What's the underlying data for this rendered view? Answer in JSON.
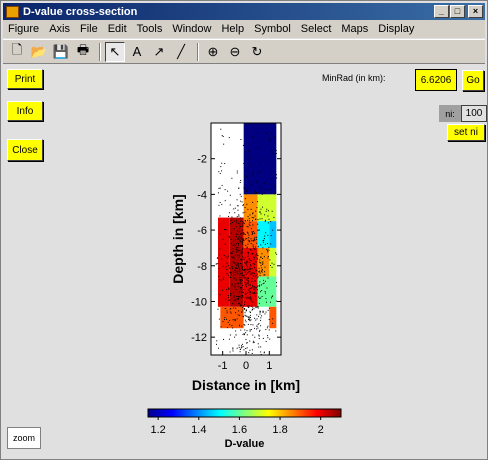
{
  "window": {
    "title": "D-value cross-section",
    "min_label": "_",
    "max_label": "□",
    "close_label": "×"
  },
  "menu": [
    "Figure",
    "Axis",
    "File",
    "Edit",
    "Tools",
    "Window",
    "Help",
    "Symbol",
    "Select",
    "Maps",
    "Display"
  ],
  "toolbar": [
    {
      "name": "new-icon",
      "glyph": "🗋"
    },
    {
      "name": "open-icon",
      "glyph": "📂"
    },
    {
      "name": "save-icon",
      "glyph": "💾"
    },
    {
      "name": "print-icon",
      "glyph": "🖶"
    },
    {
      "name": "select-arrow-icon",
      "glyph": "↖"
    },
    {
      "name": "text-icon",
      "glyph": "A"
    },
    {
      "name": "arrow-icon",
      "glyph": "↗"
    },
    {
      "name": "line-icon",
      "glyph": "╱"
    },
    {
      "name": "zoom-in-icon",
      "glyph": "⊕"
    },
    {
      "name": "zoom-out-icon",
      "glyph": "⊖"
    },
    {
      "name": "rotate-icon",
      "glyph": "↻"
    }
  ],
  "buttons": {
    "print": "Print",
    "info": "Info",
    "close": "Close",
    "go": "Go",
    "set_ni": "set ni",
    "zoom": "zoom"
  },
  "minrad": {
    "label": "MinRad (in km):",
    "value": "6.6206"
  },
  "ni": {
    "label": "ni:",
    "value": "100"
  },
  "chart_data": {
    "type": "heatmap",
    "xlabel": "Distance in [km]",
    "ylabel": "Depth in [km]",
    "xlim": [
      -1.5,
      1.5
    ],
    "ylim": [
      -13,
      0
    ],
    "xticks": [
      "-1",
      "0",
      "1"
    ],
    "yticks": [
      "-2",
      "-4",
      "-6",
      "-8",
      "-10",
      "-12"
    ],
    "colorbar": {
      "label": "D-value",
      "range": [
        1.15,
        2.1
      ],
      "ticks": [
        "1.2",
        "1.4",
        "1.6",
        "1.8",
        "2"
      ]
    },
    "cells_note": "values in D-value units; x in km, depth in km",
    "cells": [
      {
        "x0": -0.1,
        "x1": 1.3,
        "y0": 0,
        "y1": -4,
        "value": 1.15
      },
      {
        "x0": -0.1,
        "x1": 0.5,
        "y0": -4,
        "y1": -5.5,
        "value": 1.85
      },
      {
        "x0": 0.5,
        "x1": 1.3,
        "y0": -4,
        "y1": -5.5,
        "value": 1.7
      },
      {
        "x0": -0.7,
        "x1": -0.1,
        "y0": -5.3,
        "y1": -10.3,
        "value": 2.05
      },
      {
        "x0": -1.2,
        "x1": -0.7,
        "y0": -5.3,
        "y1": -10.3,
        "value": 2.0
      },
      {
        "x0": -0.1,
        "x1": 0.5,
        "y0": -5.5,
        "y1": -7.0,
        "value": 1.9
      },
      {
        "x0": 0.5,
        "x1": 1.0,
        "y0": -5.5,
        "y1": -7.0,
        "value": 1.5
      },
      {
        "x0": 1.0,
        "x1": 1.3,
        "y0": -5.5,
        "y1": -7.0,
        "value": 1.45
      },
      {
        "x0": -0.1,
        "x1": 0.5,
        "y0": -7.0,
        "y1": -10.3,
        "value": 2.0
      },
      {
        "x0": 0.5,
        "x1": 1.0,
        "y0": -7.0,
        "y1": -8.6,
        "value": 1.85
      },
      {
        "x0": 1.0,
        "x1": 1.3,
        "y0": -7.0,
        "y1": -8.6,
        "value": 1.7
      },
      {
        "x0": 0.5,
        "x1": 1.3,
        "y0": -8.6,
        "y1": -10.3,
        "value": 1.6
      },
      {
        "x0": -1.1,
        "x1": -0.1,
        "y0": -10.3,
        "y1": -11.5,
        "value": 1.9
      },
      {
        "x0": 1.0,
        "x1": 1.3,
        "y0": -10.3,
        "y1": -11.5,
        "value": 1.9
      }
    ]
  }
}
